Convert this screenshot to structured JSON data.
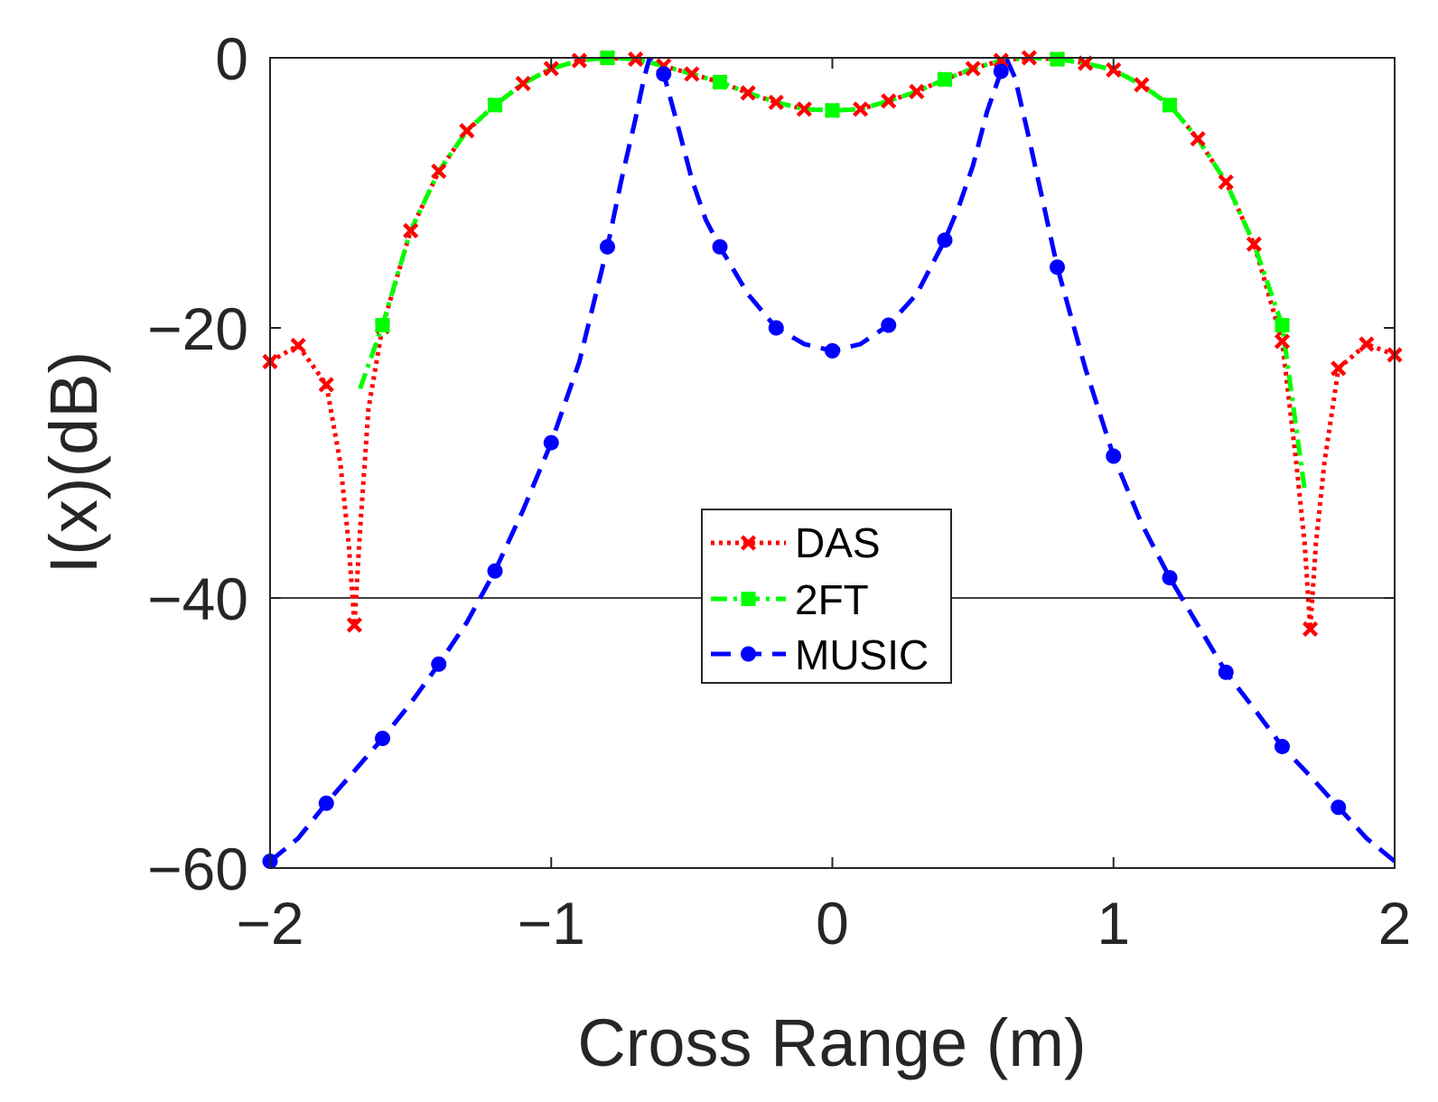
{
  "chart_data": {
    "type": "line",
    "title": "",
    "xlabel": "Cross Range (m)",
    "ylabel": "I(x)(dB)",
    "xlim": [
      -2,
      2
    ],
    "ylim": [
      -60,
      0
    ],
    "xticks": [
      -2,
      -1,
      0,
      1,
      2
    ],
    "yticks": [
      -60,
      -40,
      -20,
      0
    ],
    "xtick_labels": [
      "−2",
      "−1",
      "0",
      "1",
      "2"
    ],
    "ytick_labels": [
      "−60",
      "−40",
      "−20",
      "0"
    ],
    "reference_line": {
      "y": -40,
      "color": "#000000"
    },
    "grid": false,
    "legend_position": "center",
    "series": [
      {
        "name": "DAS",
        "color": "#ff0000",
        "line": "dotted",
        "marker": "x",
        "x": [
          -2.0,
          -1.9,
          -1.8,
          -1.75,
          -1.72,
          -1.7,
          -1.68,
          -1.65,
          -1.6,
          -1.5,
          -1.4,
          -1.3,
          -1.2,
          -1.1,
          -1.0,
          -0.9,
          -0.8,
          -0.7,
          -0.6,
          -0.5,
          -0.4,
          -0.3,
          -0.2,
          -0.1,
          0.0,
          0.1,
          0.2,
          0.3,
          0.4,
          0.5,
          0.6,
          0.7,
          0.8,
          0.9,
          1.0,
          1.1,
          1.2,
          1.3,
          1.4,
          1.5,
          1.6,
          1.65,
          1.68,
          1.7,
          1.72,
          1.75,
          1.8,
          1.9,
          2.0
        ],
        "y": [
          -22.5,
          -21.3,
          -24.2,
          -30.0,
          -36.0,
          -42.0,
          -35.0,
          -26.0,
          -19.9,
          -12.8,
          -8.4,
          -5.4,
          -3.5,
          -1.9,
          -0.8,
          -0.2,
          0.0,
          -0.1,
          -0.6,
          -1.2,
          -1.8,
          -2.6,
          -3.3,
          -3.8,
          -3.9,
          -3.8,
          -3.2,
          -2.5,
          -1.6,
          -0.8,
          -0.2,
          0.0,
          -0.1,
          -0.4,
          -0.9,
          -2.0,
          -3.5,
          -6.0,
          -9.2,
          -13.8,
          -21.0,
          -30.0,
          -36.0,
          -42.3,
          -36.0,
          -30.0,
          -23.0,
          -21.2,
          -22.0
        ],
        "marker_x": [
          -2.0,
          -1.9,
          -1.8,
          -1.7,
          -1.6,
          -1.5,
          -1.4,
          -1.3,
          -1.2,
          -1.1,
          -1.0,
          -0.9,
          -0.8,
          -0.7,
          -0.6,
          -0.5,
          -0.4,
          -0.3,
          -0.2,
          -0.1,
          0.0,
          0.1,
          0.2,
          0.3,
          0.4,
          0.5,
          0.6,
          0.7,
          0.8,
          0.9,
          1.0,
          1.1,
          1.2,
          1.3,
          1.4,
          1.5,
          1.6,
          1.7,
          1.8,
          1.9,
          2.0
        ]
      },
      {
        "name": "2FT",
        "color": "#00ff00",
        "line": "dashdot",
        "marker": "square",
        "x": [
          -1.68,
          -1.6,
          -1.5,
          -1.4,
          -1.3,
          -1.2,
          -1.1,
          -1.0,
          -0.9,
          -0.8,
          -0.7,
          -0.6,
          -0.5,
          -0.4,
          -0.3,
          -0.2,
          -0.1,
          0.0,
          0.1,
          0.2,
          0.3,
          0.4,
          0.5,
          0.6,
          0.7,
          0.8,
          0.9,
          1.0,
          1.1,
          1.2,
          1.3,
          1.4,
          1.5,
          1.6,
          1.68
        ],
        "y": [
          -24.5,
          -19.8,
          -12.8,
          -8.4,
          -5.4,
          -3.5,
          -1.9,
          -0.8,
          -0.2,
          0.0,
          -0.1,
          -0.6,
          -1.2,
          -1.8,
          -2.6,
          -3.3,
          -3.8,
          -3.9,
          -3.8,
          -3.2,
          -2.5,
          -1.6,
          -0.8,
          -0.2,
          0.0,
          -0.1,
          -0.4,
          -0.9,
          -2.0,
          -3.5,
          -6.0,
          -9.2,
          -13.8,
          -19.8,
          -32.0
        ],
        "marker_x": [
          -1.6,
          -1.2,
          -0.8,
          -0.4,
          0.0,
          0.4,
          0.8,
          1.2,
          1.6
        ]
      },
      {
        "name": "MUSIC",
        "color": "#0000ff",
        "line": "dashed",
        "marker": "circle",
        "x": [
          -2.0,
          -1.9,
          -1.8,
          -1.7,
          -1.6,
          -1.5,
          -1.4,
          -1.3,
          -1.2,
          -1.1,
          -1.0,
          -0.9,
          -0.8,
          -0.75,
          -0.7,
          -0.67,
          -0.65,
          -0.6,
          -0.55,
          -0.5,
          -0.45,
          -0.4,
          -0.3,
          -0.2,
          -0.1,
          0.0,
          0.1,
          0.2,
          0.3,
          0.4,
          0.45,
          0.5,
          0.55,
          0.6,
          0.62,
          0.65,
          0.7,
          0.8,
          0.9,
          1.0,
          1.1,
          1.2,
          1.3,
          1.4,
          1.5,
          1.6,
          1.7,
          1.8,
          1.9,
          2.0
        ],
        "y": [
          -59.5,
          -57.8,
          -55.2,
          -52.8,
          -50.4,
          -47.8,
          -44.9,
          -41.8,
          -38.0,
          -33.5,
          -28.5,
          -22.5,
          -14.0,
          -9.0,
          -4.5,
          -1.5,
          0.0,
          -1.2,
          -5.0,
          -9.0,
          -12.0,
          -14.0,
          -17.5,
          -20.0,
          -21.2,
          -21.7,
          -21.2,
          -19.8,
          -17.5,
          -13.5,
          -11.0,
          -8.0,
          -4.0,
          -1.0,
          -0.1,
          -1.5,
          -6.0,
          -15.5,
          -23.0,
          -29.5,
          -34.5,
          -38.5,
          -42.0,
          -45.5,
          -48.2,
          -51.0,
          -53.2,
          -55.5,
          -57.8,
          -59.5
        ],
        "marker_x": [
          -2.0,
          -1.8,
          -1.6,
          -1.4,
          -1.2,
          -1.0,
          -0.8,
          -0.6,
          -0.4,
          -0.2,
          0.0,
          0.2,
          0.4,
          0.6,
          0.8,
          1.0,
          1.2,
          1.4,
          1.6,
          1.8
        ]
      }
    ]
  }
}
